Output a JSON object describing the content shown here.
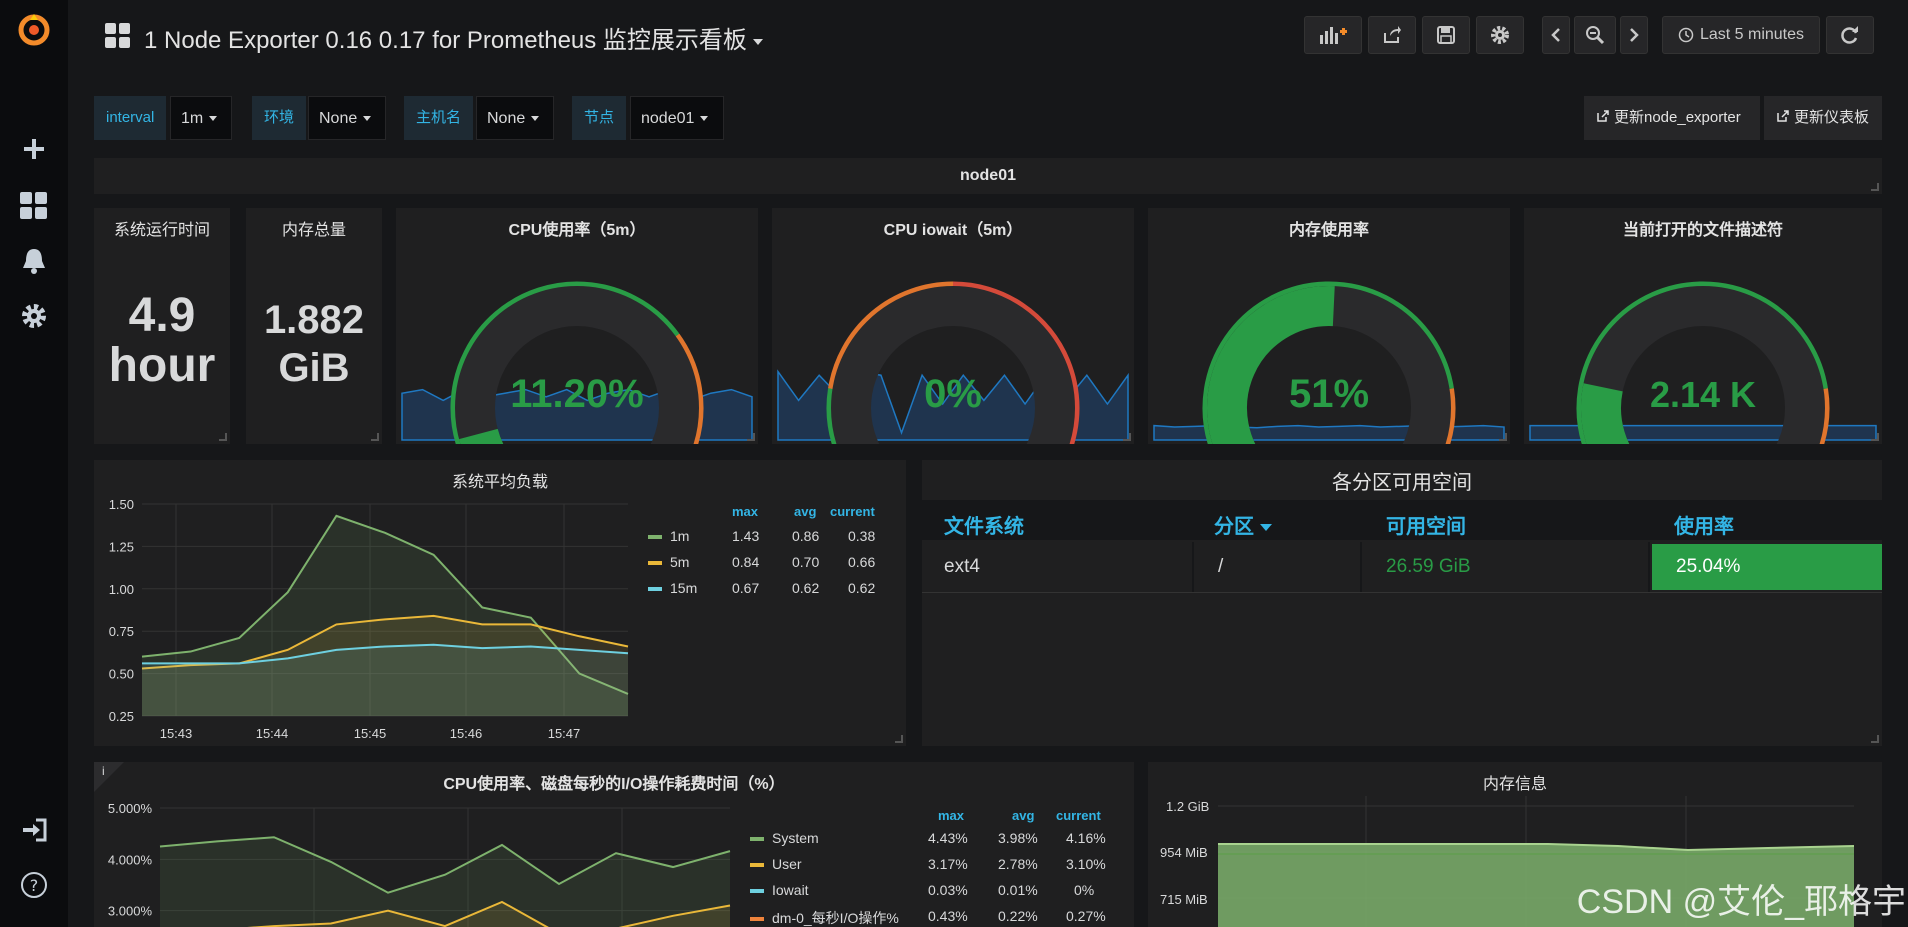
{
  "header": {
    "title": "1 Node Exporter 0.16 0.17 for Prometheus 监控展示看板",
    "time_range": "Last 5 minutes"
  },
  "variables": [
    {
      "label": "interval",
      "value": "1m"
    },
    {
      "label": "环境",
      "value": "None"
    },
    {
      "label": "主机名",
      "value": "None"
    },
    {
      "label": "节点",
      "value": "node01"
    }
  ],
  "links": {
    "update_exporter": "更新node_exporter",
    "update_dashboard": "更新仪表板"
  },
  "row": {
    "title": "node01"
  },
  "stats": {
    "uptime": {
      "title": "系统运行时间",
      "value": "4.9",
      "unit": "hour"
    },
    "memory_total": {
      "title": "内存总量",
      "value": "1.882",
      "unit": "GiB"
    }
  },
  "gauges": [
    {
      "title": "CPU使用率（5m）",
      "value": "11.20%",
      "fraction": 0.112,
      "color": "#299c46"
    },
    {
      "title": "CPU iowait（5m）",
      "value": "0%",
      "fraction": 0.0,
      "color": "#299c46"
    },
    {
      "title": "内存使用率",
      "value": "51%",
      "fraction": 0.51,
      "color": "#299c46"
    },
    {
      "title": "当前打开的文件描述符",
      "value": "2.14 K",
      "fraction": 0.21,
      "color": "#299c46"
    }
  ],
  "load": {
    "title": "系统平均负载",
    "y_ticks": [
      "1.50",
      "1.25",
      "1.00",
      "0.75",
      "0.50",
      "0.25"
    ],
    "x_ticks": [
      "15:43",
      "15:44",
      "15:45",
      "15:46",
      "15:47"
    ],
    "legend_headers": {
      "max": "max",
      "avg": "avg",
      "current": "current"
    },
    "series": [
      {
        "name": "1m",
        "color": "#7eb26d",
        "max": "1.43",
        "avg": "0.86",
        "current": "0.38",
        "values": [
          0.6,
          0.63,
          0.71,
          0.98,
          1.43,
          1.33,
          1.2,
          0.89,
          0.83,
          0.5,
          0.38
        ]
      },
      {
        "name": "5m",
        "color": "#eab839",
        "max": "0.84",
        "avg": "0.70",
        "current": "0.66",
        "values": [
          0.53,
          0.55,
          0.56,
          0.64,
          0.79,
          0.82,
          0.84,
          0.79,
          0.79,
          0.72,
          0.66
        ]
      },
      {
        "name": "15m",
        "color": "#6ed0e0",
        "max": "0.67",
        "avg": "0.62",
        "current": "0.62",
        "values": [
          0.56,
          0.56,
          0.56,
          0.59,
          0.64,
          0.66,
          0.67,
          0.65,
          0.66,
          0.64,
          0.62
        ]
      }
    ]
  },
  "partition": {
    "title": "各分区可用空间",
    "headers": [
      "文件系统",
      "分区",
      "可用空间",
      "使用率"
    ],
    "row": {
      "fs": "ext4",
      "mount": "/",
      "free": "26.59 GiB",
      "usage": "25.04%"
    }
  },
  "cpu_io": {
    "title": "CPU使用率、磁盘每秒的I/O操作耗费时间（%）",
    "info": "i",
    "y_ticks": [
      "5.000%",
      "4.000%",
      "3.000%"
    ],
    "legend_headers": {
      "max": "max",
      "avg": "avg",
      "current": "current"
    },
    "series": [
      {
        "name": "System",
        "color": "#7eb26d",
        "max": "4.43%",
        "avg": "3.98%",
        "current": "4.16%",
        "values": [
          4.25,
          4.35,
          4.43,
          3.95,
          3.35,
          3.7,
          4.28,
          3.52,
          4.12,
          3.85,
          4.16
        ]
      },
      {
        "name": "User",
        "color": "#eab839",
        "max": "3.17%",
        "avg": "2.78%",
        "current": "3.10%",
        "values": [
          2.6,
          2.62,
          2.7,
          2.75,
          3.0,
          2.7,
          3.17,
          2.55,
          2.65,
          2.9,
          3.1
        ]
      },
      {
        "name": "Iowait",
        "color": "#6ed0e0",
        "max": "0.03%",
        "avg": "0.01%",
        "current": "0%",
        "values": []
      },
      {
        "name": "dm-0_每秒I/O操作%",
        "color": "#ef843c",
        "max": "0.43%",
        "avg": "0.22%",
        "current": "0.27%",
        "values": []
      }
    ]
  },
  "mem_info": {
    "title": "内存信息",
    "y_ticks": [
      "1.2 GiB",
      "954 MiB",
      "715 MiB"
    ]
  },
  "watermark": "CSDN @艾伦_耶格宇"
}
